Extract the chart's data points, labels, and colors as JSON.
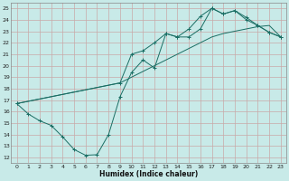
{
  "xlabel": "Humidex (Indice chaleur)",
  "bg_color": "#c8eae8",
  "grid_color": "#a8ccc8",
  "line_color": "#1a6e64",
  "xlim": [
    -0.5,
    23.5
  ],
  "ylim": [
    11.5,
    25.5
  ],
  "xticks": [
    0,
    1,
    2,
    3,
    4,
    5,
    6,
    7,
    8,
    9,
    10,
    11,
    12,
    13,
    14,
    15,
    16,
    17,
    18,
    19,
    20,
    21,
    22,
    23
  ],
  "yticks": [
    12,
    13,
    14,
    15,
    16,
    17,
    18,
    19,
    20,
    21,
    22,
    23,
    24,
    25
  ],
  "line1_x": [
    0,
    1,
    2,
    3,
    4,
    5,
    6,
    7,
    8,
    9,
    10,
    11,
    12,
    13,
    14,
    15,
    16,
    17,
    18,
    19,
    20,
    21,
    22,
    23
  ],
  "line1_y": [
    16.7,
    15.8,
    15.2,
    14.8,
    13.8,
    12.7,
    12.2,
    12.25,
    14.0,
    17.3,
    19.4,
    20.5,
    19.8,
    22.8,
    22.5,
    22.5,
    23.2,
    25.0,
    24.5,
    24.8,
    24.0,
    23.5,
    22.9,
    22.5
  ],
  "line2_x": [
    0,
    1,
    2,
    3,
    4,
    5,
    6,
    7,
    8,
    9,
    10,
    11,
    12,
    13,
    14,
    15,
    16,
    17,
    18,
    19,
    20,
    21,
    22,
    23
  ],
  "line2_y": [
    16.7,
    16.9,
    17.1,
    17.3,
    17.5,
    17.7,
    17.9,
    18.1,
    18.3,
    18.5,
    19.0,
    19.5,
    20.0,
    20.5,
    21.0,
    21.5,
    22.0,
    22.5,
    22.8,
    23.0,
    23.2,
    23.4,
    23.5,
    22.5
  ],
  "line3_x": [
    0,
    9,
    10,
    11,
    12,
    13,
    14,
    15,
    16,
    17,
    18,
    19,
    20,
    21,
    22,
    23
  ],
  "line3_y": [
    16.7,
    18.5,
    21.0,
    21.3,
    22.0,
    22.8,
    22.5,
    23.2,
    24.3,
    25.0,
    24.5,
    24.8,
    24.2,
    23.5,
    22.9,
    22.5
  ]
}
